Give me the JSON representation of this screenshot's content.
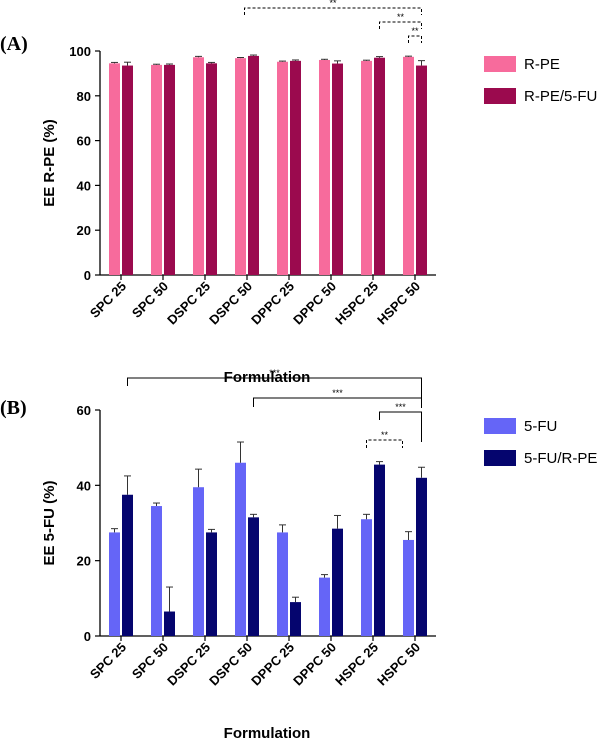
{
  "chart_data": [
    {
      "panel_label": "(A)",
      "type": "bar",
      "categories": [
        "SPC 25",
        "SPC 50",
        "DSPC 25",
        "DSPC 50",
        "DPPC 25",
        "DPPC 50",
        "HSPC 25",
        "HSPC 50"
      ],
      "series": [
        {
          "name": "R-PE",
          "color": "#f76b9c",
          "values": [
            94.5,
            93.8,
            97.2,
            96.8,
            95.2,
            96.0,
            95.6,
            97.4
          ],
          "errors": [
            0.4,
            0.3,
            0.4,
            0.3,
            0.3,
            0.3,
            0.3,
            0.3
          ]
        },
        {
          "name": "R-PE/5-FU",
          "color": "#9b0a4e",
          "values": [
            93.5,
            93.8,
            94.5,
            97.8,
            95.6,
            94.4,
            97.0,
            93.5
          ],
          "errors": [
            1.5,
            0.4,
            0.4,
            0.4,
            0.4,
            1.2,
            0.5,
            2.2
          ]
        }
      ],
      "ylabel": "EE R-PE (%)",
      "xlabel": "Formulation",
      "ylim": [
        0,
        100
      ],
      "yticks": [
        "0",
        "20",
        "40",
        "60",
        "80",
        "100"
      ],
      "legend_position": "right",
      "significance": [
        {
          "from": 3,
          "to": 7,
          "label": "**",
          "style": "dashed"
        },
        {
          "from": 6,
          "to": 7,
          "label": "**",
          "style": "dashed"
        },
        {
          "from": 7,
          "to": 7,
          "label": "**",
          "style": "dashed"
        }
      ]
    },
    {
      "panel_label": "(B)",
      "type": "bar",
      "categories": [
        "SPC 25",
        "SPC 50",
        "DSPC 25",
        "DSPC 50",
        "DPPC 25",
        "DPPC 50",
        "HSPC 25",
        "HSPC 50"
      ],
      "series": [
        {
          "name": "5-FU",
          "color": "#6565f7",
          "values": [
            27.5,
            34.5,
            39.5,
            46.0,
            27.5,
            15.5,
            31.0,
            25.5
          ],
          "errors": [
            1.0,
            0.8,
            4.8,
            5.5,
            2.0,
            0.8,
            1.3,
            2.2
          ]
        },
        {
          "name": "5-FU/R-PE",
          "color": "#05056e",
          "values": [
            37.5,
            6.5,
            27.5,
            31.5,
            9.0,
            28.5,
            45.5,
            42.0
          ],
          "errors": [
            5.0,
            6.5,
            0.8,
            0.8,
            1.3,
            3.5,
            0.8,
            2.8
          ]
        }
      ],
      "ylabel": "EE 5-FU (%)",
      "xlabel": "Formulation",
      "ylim": [
        0,
        60
      ],
      "yticks": [
        "0",
        "20",
        "40",
        "60"
      ],
      "legend_position": "right",
      "significance": [
        {
          "from": 0,
          "to": 7,
          "label": "***",
          "style": "solid"
        },
        {
          "from": 3,
          "to": 7,
          "label": "***",
          "style": "solid"
        },
        {
          "from": 6,
          "to": 7,
          "label": "***",
          "style": "solid"
        },
        {
          "from": 6,
          "to": 6,
          "label": "**",
          "style": "dashed"
        }
      ]
    }
  ]
}
